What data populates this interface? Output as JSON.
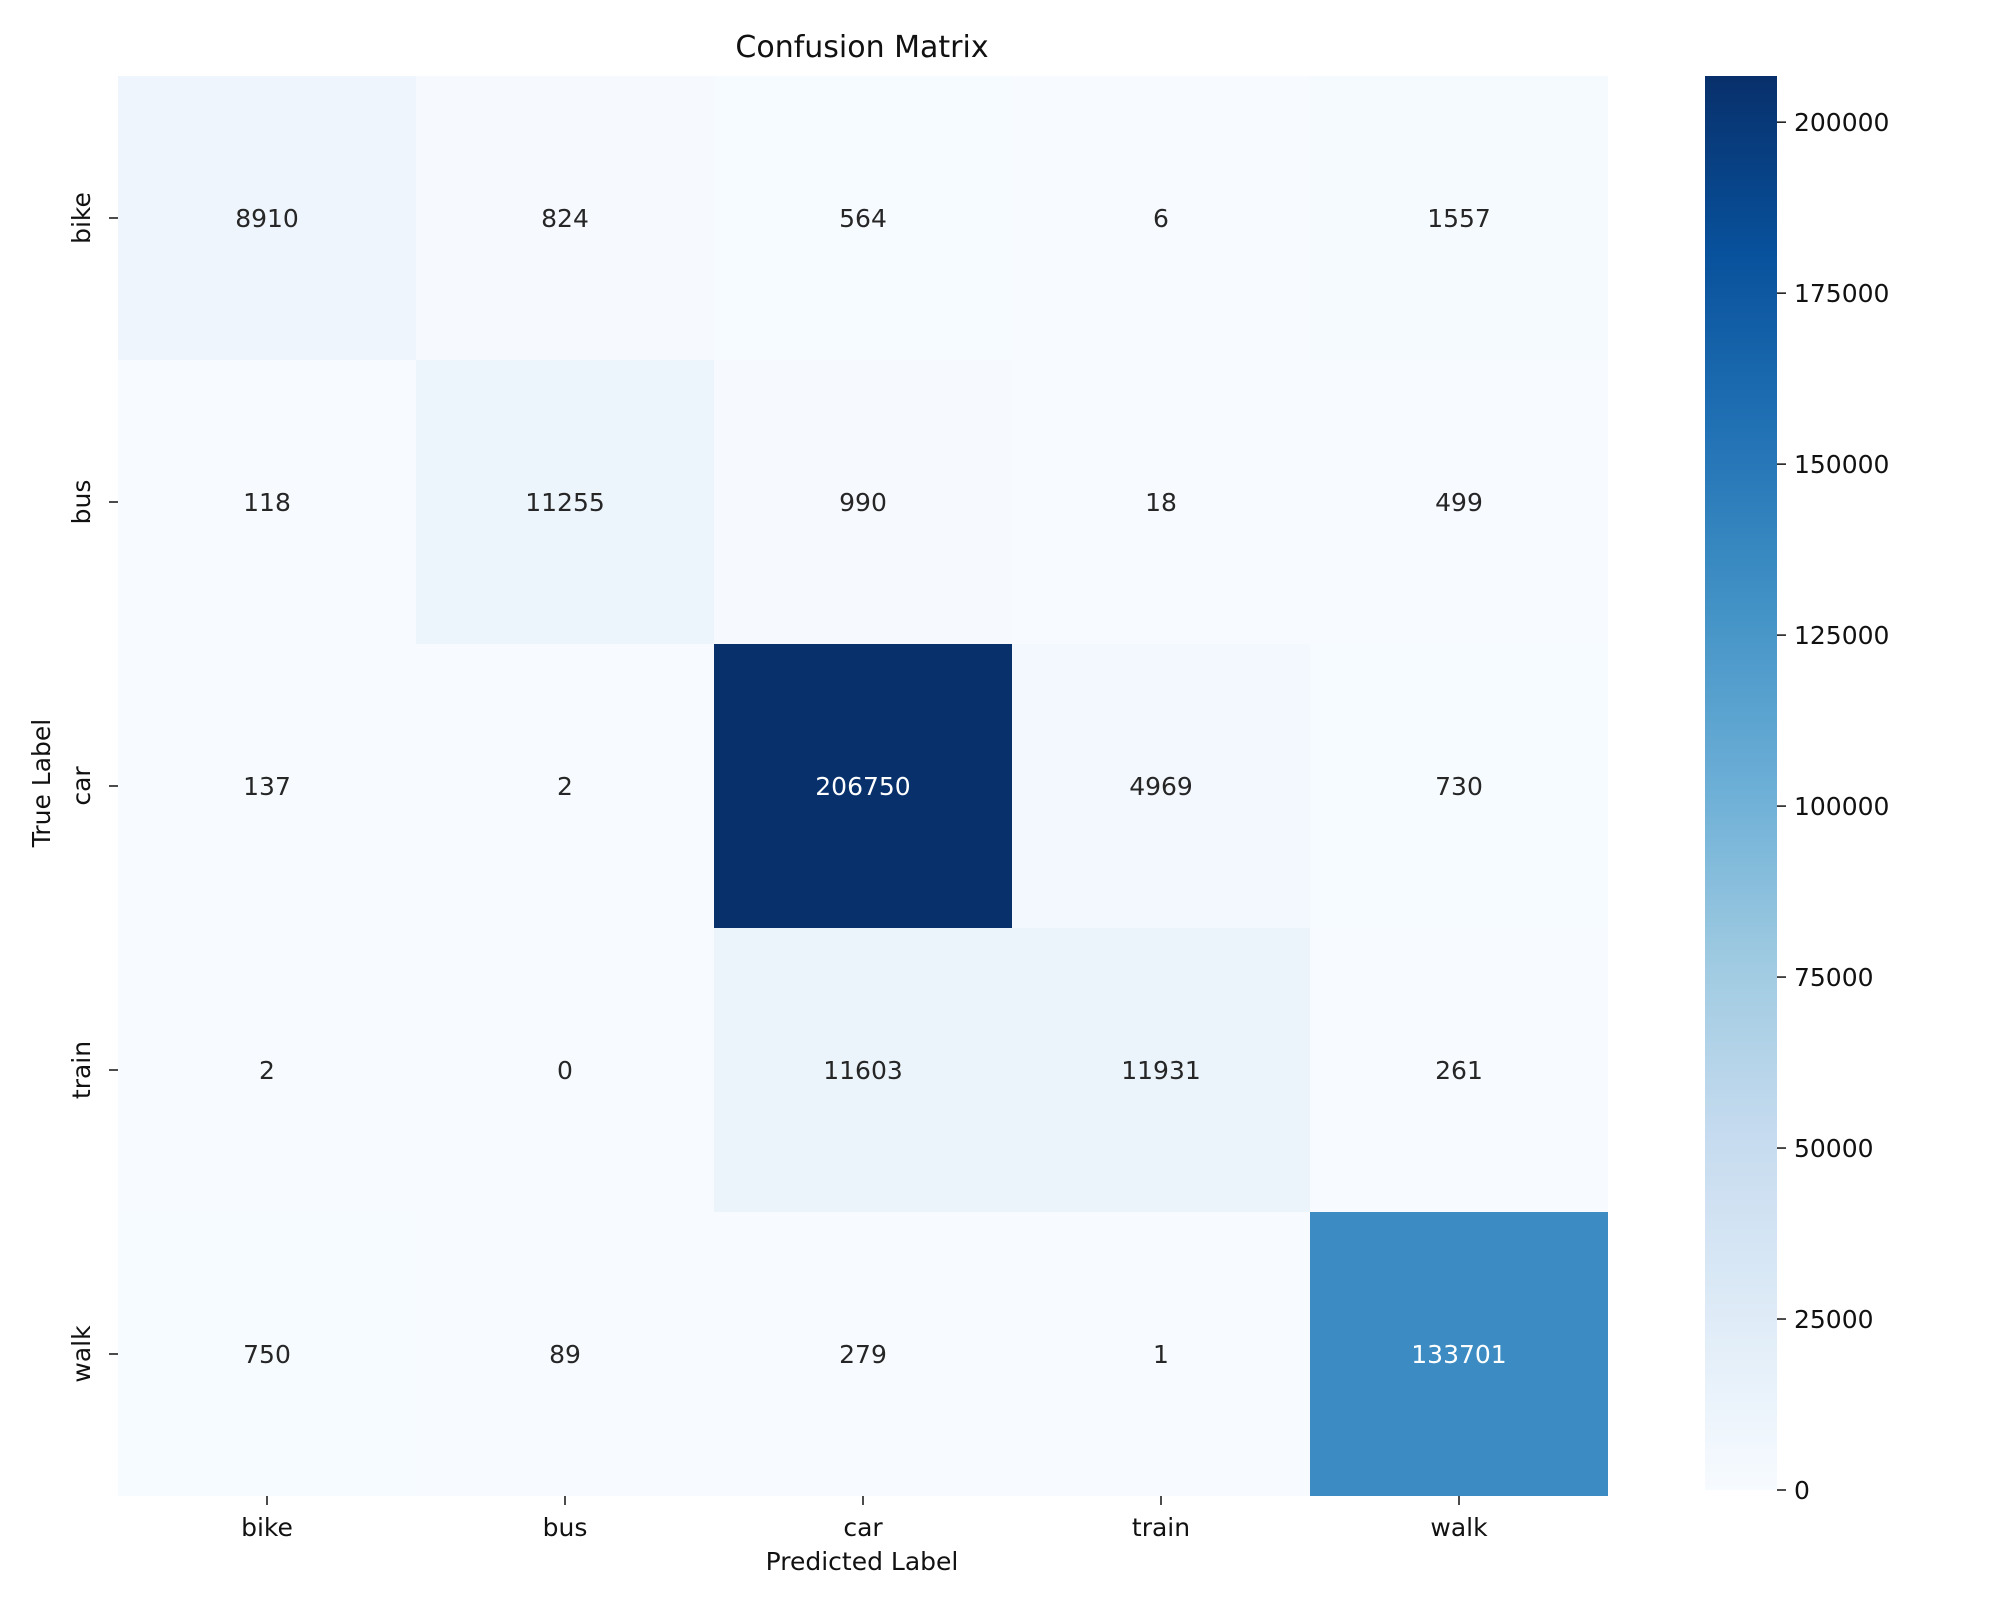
{
  "chart_data": {
    "type": "heatmap",
    "title": "Confusion Matrix",
    "xlabel": "Predicted Label",
    "ylabel": "True Label",
    "x_categories": [
      "bike",
      "bus",
      "car",
      "train",
      "walk"
    ],
    "y_categories": [
      "bike",
      "bus",
      "car",
      "train",
      "walk"
    ],
    "matrix": [
      [
        8910,
        824,
        564,
        6,
        1557
      ],
      [
        118,
        11255,
        990,
        18,
        499
      ],
      [
        137,
        2,
        206750,
        4969,
        730
      ],
      [
        2,
        0,
        11603,
        11931,
        261
      ],
      [
        750,
        89,
        279,
        1,
        133701
      ]
    ],
    "colormap": "Blues",
    "vmin": 0,
    "vmax": 206750,
    "colorbar_ticks": [
      0,
      25000,
      50000,
      75000,
      100000,
      125000,
      150000,
      175000,
      200000
    ],
    "colorbar_tick_labels": [
      "0",
      "25000",
      "50000",
      "75000",
      "100000",
      "125000",
      "150000",
      "175000",
      "200000"
    ],
    "grid": false,
    "colorbar": "right"
  }
}
